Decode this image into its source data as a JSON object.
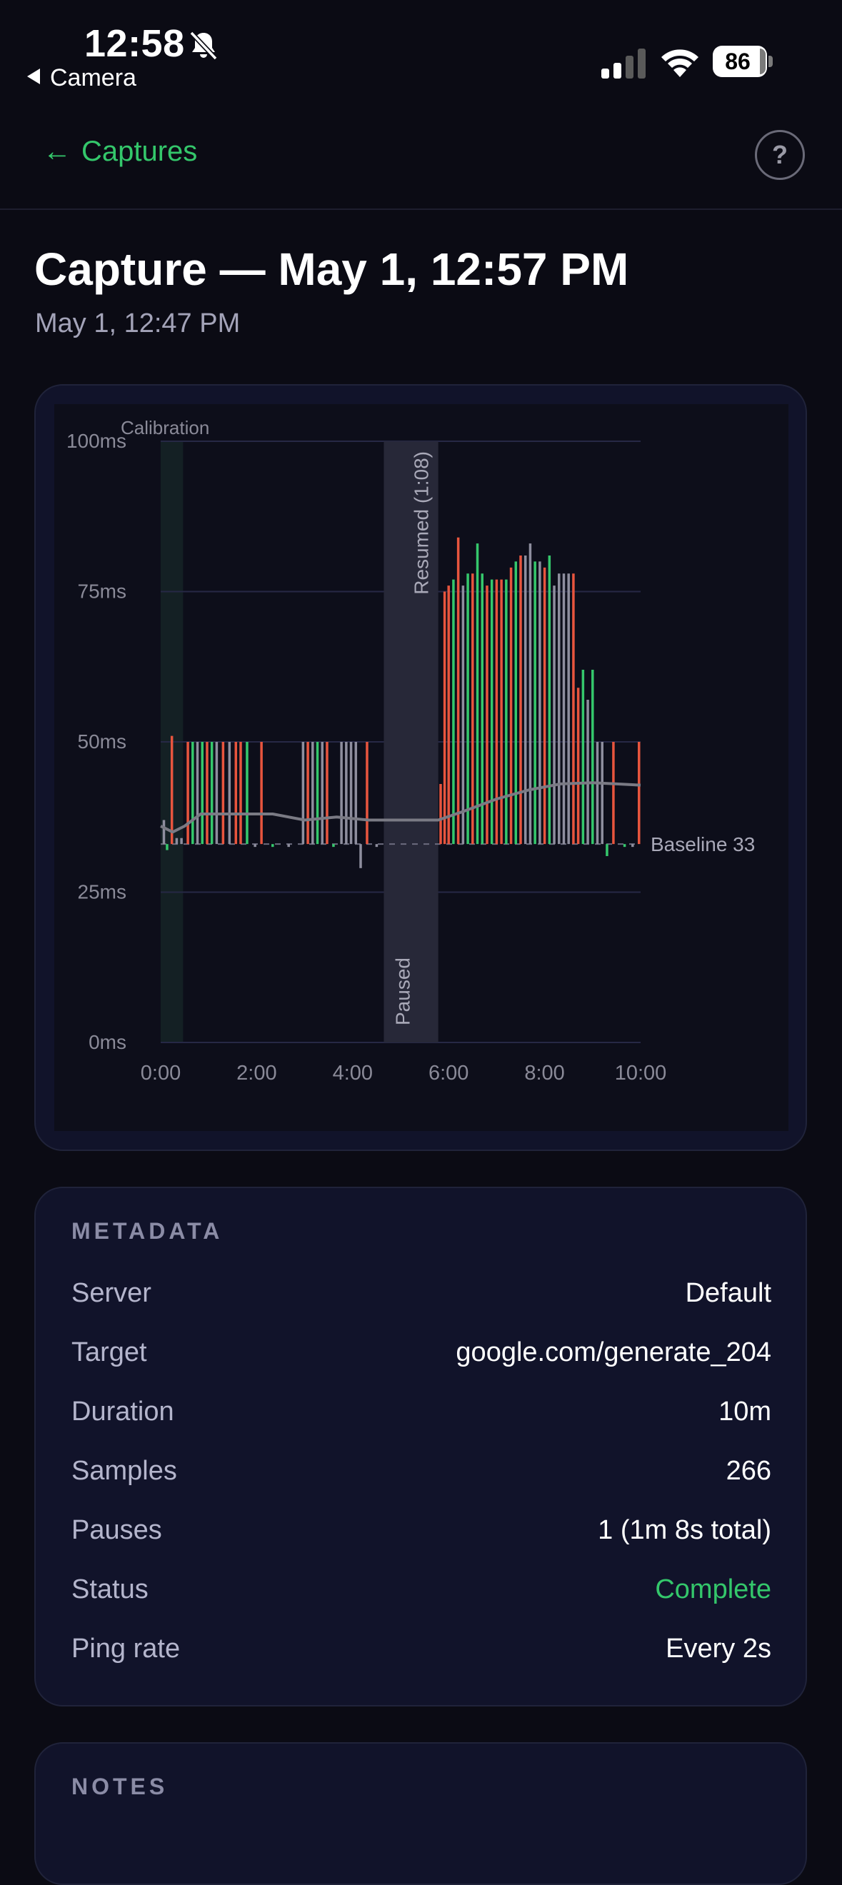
{
  "status_bar": {
    "time": "12:58",
    "back_app": "Camera",
    "battery": "86"
  },
  "nav": {
    "back_label": "Captures",
    "help_label": "?"
  },
  "header": {
    "title": "Capture — May 1, 12:57 PM",
    "subtitle": "May 1, 12:47 PM"
  },
  "chart_data": {
    "type": "bar",
    "ylabel_ticks": [
      "0ms",
      "25ms",
      "50ms",
      "75ms",
      "100ms"
    ],
    "y_ticks": [
      0,
      25,
      50,
      75,
      100
    ],
    "x_ticks": [
      "0:00",
      "2:00",
      "4:00",
      "6:00",
      "8:00",
      "10:00"
    ],
    "x_tick_values": [
      0,
      120,
      240,
      360,
      480,
      600
    ],
    "ylim": [
      0,
      100
    ],
    "xlim": [
      0,
      600
    ],
    "baseline": 33,
    "baseline_label": "Baseline 33",
    "calibration_label": "Calibration",
    "calibration_range": [
      0,
      28
    ],
    "paused_range": [
      279,
      347
    ],
    "paused_label": "Paused",
    "resumed_label": "Resumed (1:08)",
    "grid": true,
    "colors": {
      "high": "#e8553e",
      "low": "#35c86c",
      "neutral": "#8e8e9e",
      "rolling": "#7a7a84",
      "baseline": "#6b6b7e"
    },
    "samples": [
      {
        "t": 4,
        "v": 37,
        "c": "neutral"
      },
      {
        "t": 8,
        "v": 32,
        "c": "low"
      },
      {
        "t": 14,
        "v": 51,
        "c": "high"
      },
      {
        "t": 20,
        "v": 34,
        "c": "neutral"
      },
      {
        "t": 26,
        "v": 34,
        "c": "neutral"
      },
      {
        "t": 34,
        "v": 50,
        "c": "high"
      },
      {
        "t": 40,
        "v": 50,
        "c": "low"
      },
      {
        "t": 46,
        "v": 50,
        "c": "neutral"
      },
      {
        "t": 52,
        "v": 50,
        "c": "low"
      },
      {
        "t": 58,
        "v": 50,
        "c": "high"
      },
      {
        "t": 64,
        "v": 50,
        "c": "low"
      },
      {
        "t": 70,
        "v": 50,
        "c": "neutral"
      },
      {
        "t": 78,
        "v": 50,
        "c": "high"
      },
      {
        "t": 86,
        "v": 50,
        "c": "neutral"
      },
      {
        "t": 94,
        "v": 50,
        "c": "high"
      },
      {
        "t": 100,
        "v": 50,
        "c": "high"
      },
      {
        "t": 108,
        "v": 50,
        "c": "low"
      },
      {
        "t": 118,
        "v": 33,
        "c": "neutral"
      },
      {
        "t": 126,
        "v": 50,
        "c": "high"
      },
      {
        "t": 140,
        "v": 33,
        "c": "low"
      },
      {
        "t": 160,
        "v": 33,
        "c": "neutral"
      },
      {
        "t": 178,
        "v": 50,
        "c": "neutral"
      },
      {
        "t": 184,
        "v": 50,
        "c": "high"
      },
      {
        "t": 190,
        "v": 50,
        "c": "neutral"
      },
      {
        "t": 196,
        "v": 50,
        "c": "low"
      },
      {
        "t": 202,
        "v": 50,
        "c": "neutral"
      },
      {
        "t": 208,
        "v": 50,
        "c": "high"
      },
      {
        "t": 216,
        "v": 33,
        "c": "low"
      },
      {
        "t": 226,
        "v": 50,
        "c": "neutral"
      },
      {
        "t": 232,
        "v": 50,
        "c": "neutral"
      },
      {
        "t": 238,
        "v": 50,
        "c": "neutral"
      },
      {
        "t": 244,
        "v": 50,
        "c": "neutral"
      },
      {
        "t": 250,
        "v": 29,
        "c": "neutral"
      },
      {
        "t": 258,
        "v": 50,
        "c": "high"
      },
      {
        "t": 270,
        "v": 33,
        "c": "neutral"
      },
      {
        "t": 350,
        "v": 43,
        "c": "high"
      },
      {
        "t": 355,
        "v": 75,
        "c": "high"
      },
      {
        "t": 360,
        "v": 76,
        "c": "high"
      },
      {
        "t": 366,
        "v": 77,
        "c": "low"
      },
      {
        "t": 372,
        "v": 84,
        "c": "high"
      },
      {
        "t": 378,
        "v": 76,
        "c": "neutral"
      },
      {
        "t": 384,
        "v": 78,
        "c": "low"
      },
      {
        "t": 390,
        "v": 78,
        "c": "high"
      },
      {
        "t": 396,
        "v": 83,
        "c": "low"
      },
      {
        "t": 402,
        "v": 78,
        "c": "low"
      },
      {
        "t": 408,
        "v": 76,
        "c": "high"
      },
      {
        "t": 414,
        "v": 77,
        "c": "low"
      },
      {
        "t": 420,
        "v": 77,
        "c": "high"
      },
      {
        "t": 426,
        "v": 77,
        "c": "high"
      },
      {
        "t": 432,
        "v": 77,
        "c": "low"
      },
      {
        "t": 438,
        "v": 79,
        "c": "high"
      },
      {
        "t": 444,
        "v": 80,
        "c": "low"
      },
      {
        "t": 450,
        "v": 81,
        "c": "high"
      },
      {
        "t": 456,
        "v": 81,
        "c": "neutral"
      },
      {
        "t": 462,
        "v": 83,
        "c": "neutral"
      },
      {
        "t": 468,
        "v": 80,
        "c": "low"
      },
      {
        "t": 474,
        "v": 80,
        "c": "neutral"
      },
      {
        "t": 480,
        "v": 79,
        "c": "high"
      },
      {
        "t": 486,
        "v": 81,
        "c": "low"
      },
      {
        "t": 492,
        "v": 76,
        "c": "neutral"
      },
      {
        "t": 498,
        "v": 78,
        "c": "neutral"
      },
      {
        "t": 504,
        "v": 78,
        "c": "neutral"
      },
      {
        "t": 510,
        "v": 78,
        "c": "neutral"
      },
      {
        "t": 516,
        "v": 78,
        "c": "high"
      },
      {
        "t": 522,
        "v": 59,
        "c": "high"
      },
      {
        "t": 528,
        "v": 62,
        "c": "low"
      },
      {
        "t": 534,
        "v": 57,
        "c": "neutral"
      },
      {
        "t": 540,
        "v": 62,
        "c": "low"
      },
      {
        "t": 546,
        "v": 50,
        "c": "neutral"
      },
      {
        "t": 552,
        "v": 50,
        "c": "neutral"
      },
      {
        "t": 558,
        "v": 31,
        "c": "low"
      },
      {
        "t": 566,
        "v": 50,
        "c": "high"
      },
      {
        "t": 580,
        "v": 33,
        "c": "low"
      },
      {
        "t": 590,
        "v": 33,
        "c": "neutral"
      },
      {
        "t": 598,
        "v": 50,
        "c": "high"
      }
    ],
    "rolling_avg": [
      {
        "t": 0,
        "v": 36
      },
      {
        "t": 15,
        "v": 35
      },
      {
        "t": 30,
        "v": 36
      },
      {
        "t": 50,
        "v": 38
      },
      {
        "t": 70,
        "v": 38
      },
      {
        "t": 90,
        "v": 38
      },
      {
        "t": 110,
        "v": 38
      },
      {
        "t": 140,
        "v": 38
      },
      {
        "t": 180,
        "v": 37
      },
      {
        "t": 220,
        "v": 37.5
      },
      {
        "t": 260,
        "v": 37
      },
      {
        "t": 279,
        "v": 37
      },
      {
        "t": 347,
        "v": 37
      },
      {
        "t": 380,
        "v": 38.5
      },
      {
        "t": 420,
        "v": 40.5
      },
      {
        "t": 460,
        "v": 42
      },
      {
        "t": 500,
        "v": 43
      },
      {
        "t": 540,
        "v": 43.2
      },
      {
        "t": 570,
        "v": 43
      },
      {
        "t": 600,
        "v": 42.8
      }
    ]
  },
  "metadata": {
    "heading": "METADATA",
    "rows": [
      {
        "label": "Server",
        "value": "Default"
      },
      {
        "label": "Target",
        "value": "google.com/generate_204"
      },
      {
        "label": "Duration",
        "value": "10m"
      },
      {
        "label": "Samples",
        "value": "266"
      },
      {
        "label": "Pauses",
        "value": "1 (1m 8s total)"
      },
      {
        "label": "Status",
        "value": "Complete"
      },
      {
        "label": "Ping rate",
        "value": "Every 2s"
      }
    ]
  },
  "notes": {
    "heading": "NOTES"
  }
}
